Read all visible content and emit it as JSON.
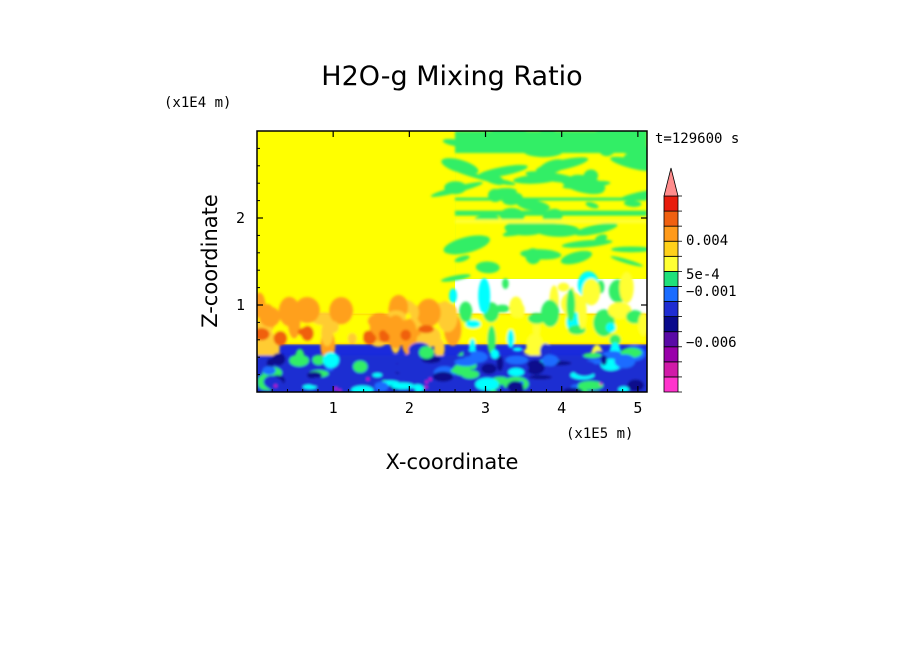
{
  "chart_data": {
    "type": "heatmap",
    "title": "H2O-g Mixing Ratio",
    "xlabel": "X-coordinate",
    "ylabel": "Z-coordinate",
    "x_scale_label": "(x1E5 m)",
    "y_scale_label": "(x1E4 m)",
    "time_label": "t=129600 s",
    "xlim": [
      0,
      5.12
    ],
    "ylim": [
      0,
      3.0
    ],
    "x_ticks": [
      1,
      2,
      3,
      4,
      5
    ],
    "y_ticks": [
      1,
      2
    ],
    "x_tick_labels": [
      "1",
      "2",
      "3",
      "4",
      "5"
    ],
    "y_tick_labels": [
      "1",
      "2"
    ],
    "colorbar": {
      "levels_bottom_to_top": [
        {
          "color": "#ff33cc"
        },
        {
          "color": "#d11aa8"
        },
        {
          "color": "#9900aa"
        },
        {
          "color": "#5a0aa6"
        },
        {
          "color": "#0a0a8c"
        },
        {
          "color": "#1f2dd2"
        },
        {
          "color": "#1a6cff"
        },
        {
          "color": "#1fe07a"
        },
        {
          "color": "#ffff33"
        },
        {
          "color": "#ffd11a"
        },
        {
          "color": "#ff9a1a"
        },
        {
          "color": "#f06010"
        },
        {
          "color": "#e81c0c"
        },
        {
          "color": "#ff8c8c"
        }
      ],
      "labels": [
        {
          "text": "0.004",
          "value": 0.004
        },
        {
          "text": "5e-4",
          "value": 0.0005
        },
        {
          "text": "−0.001",
          "value": -0.001
        },
        {
          "text": "−0.006",
          "value": -0.006
        }
      ],
      "extend": "max"
    },
    "field_regions": [
      {
        "name": "upper-left",
        "x": [
          0,
          2.6
        ],
        "z": [
          0.9,
          3.0
        ],
        "category": "zero",
        "color": "#ffff00"
      },
      {
        "name": "upper-right",
        "x": [
          2.6,
          5.12
        ],
        "z": [
          1.3,
          3.0
        ],
        "category": "slightly-negative-mixed",
        "color": "#33ee66"
      },
      {
        "name": "mid-layer",
        "x": [
          0,
          5.12
        ],
        "z": [
          0.4,
          0.9
        ],
        "category": "positive-mixed",
        "color": "#ff9900"
      },
      {
        "name": "boundary-layer",
        "x": [
          0,
          5.12
        ],
        "z": [
          0,
          0.55
        ],
        "category": "negative",
        "color": "#1a2adc"
      }
    ]
  }
}
